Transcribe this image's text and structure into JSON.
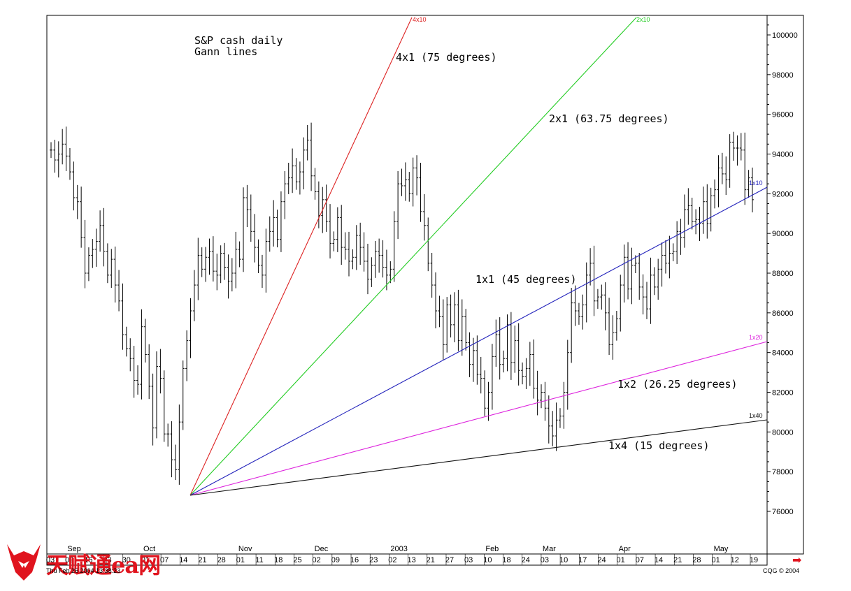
{
  "chart_data": {
    "type": "bar",
    "subtype": "ohlc",
    "title": "S&P cash daily",
    "subtitle": "Gann lines",
    "y_ticks": [
      76000,
      78000,
      80000,
      82000,
      84000,
      86000,
      88000,
      90000,
      92000,
      94000,
      96000,
      98000,
      100000
    ],
    "ylim": [
      74000,
      101000
    ],
    "months": [
      "Sep",
      "Oct",
      "Nov",
      "Dec",
      "2003",
      "Feb",
      "Mar",
      "Apr",
      "May"
    ],
    "x_day_labels": [
      "03",
      "09",
      "16",
      "23",
      "30",
      "01",
      "07",
      "14",
      "21",
      "28",
      "01",
      "11",
      "18",
      "25",
      "02",
      "09",
      "16",
      "23",
      "02",
      "13",
      "21",
      "27",
      "03",
      "10",
      "18",
      "24",
      "03",
      "10",
      "17",
      "24",
      "01",
      "07",
      "14",
      "21",
      "28",
      "01",
      "12",
      "19"
    ],
    "grid": false,
    "gann_lines": [
      {
        "code": "4x10",
        "label": "4x1 (75 degrees)",
        "color": "#dd2222"
      },
      {
        "code": "2x10",
        "label": "2x1 (63.75 degrees)",
        "color": "#22cc22"
      },
      {
        "code": "1x10",
        "label": "1x1 (45 degrees)",
        "color": "#2222bb"
      },
      {
        "code": "1x20",
        "label": "1x2 (26.25 degrees)",
        "color": "#dd22dd"
      },
      {
        "code": "1x40",
        "label": "1x4 (15 degrees)",
        "color": "#111111"
      }
    ],
    "bar_closes": [
      94200,
      93700,
      94000,
      94500,
      93900,
      93100,
      91800,
      91600,
      89800,
      88000,
      88900,
      89200,
      89600,
      90400,
      89100,
      87900,
      88700,
      87400,
      86600,
      84900,
      84200,
      83700,
      82600,
      82400,
      85300,
      83900,
      82300,
      80200,
      83300,
      82700,
      79900,
      79900,
      78600,
      78100,
      80500,
      83200,
      84600,
      86100,
      87400,
      88900,
      88200,
      88800,
      89100,
      88100,
      87900,
      89000,
      88300,
      87600,
      88000,
      89200,
      88700,
      91800,
      91200,
      90100,
      89300,
      88400,
      87900,
      89600,
      90100,
      90800,
      89700,
      91600,
      92500,
      92800,
      93400,
      92600,
      93100,
      94200,
      94700,
      92900,
      92100,
      90900,
      91700,
      90600,
      89500,
      89700,
      90800,
      89300,
      89200,
      88600,
      88800,
      89900,
      89300,
      88600,
      87700,
      88400,
      89100,
      88900,
      88300,
      87900,
      88200,
      90600,
      92500,
      92400,
      92700,
      92000,
      93300,
      92800,
      91100,
      90400,
      88500,
      87400,
      86100,
      85800,
      84400,
      86400,
      85400,
      86400,
      84600,
      85800,
      84500,
      83400,
      84100,
      82900,
      82700,
      81200,
      82000,
      83800,
      84900,
      83400,
      83700,
      85400,
      83500,
      84600,
      83100,
      82800,
      83200,
      83900,
      82200,
      81600,
      82000,
      81200,
      80300,
      79800,
      80600,
      80800,
      82000,
      84000,
      86500,
      86100,
      85800,
      86400,
      87900,
      88500,
      86600,
      86800,
      86900,
      86000,
      84400,
      85000,
      85700,
      87400,
      88800,
      87200,
      88400,
      88500,
      87300,
      86800,
      86200,
      87900,
      87300,
      88200,
      88900,
      88500,
      89000,
      89100,
      90100,
      89800,
      91200,
      91400,
      90600,
      90700,
      90500,
      91600,
      90500,
      91900,
      92200,
      93300,
      93000,
      92700,
      94600,
      94300,
      94300,
      94200,
      92200,
      92800,
      91700
    ]
  },
  "footer": {
    "left": "Thu Feb 26 2004 13:38:23",
    "right": "CQG © 2004"
  },
  "logo_text": "天赋通ea网",
  "colors": {
    "background": "#ffffff",
    "axis": "#000000",
    "logo": "#e0141e"
  }
}
